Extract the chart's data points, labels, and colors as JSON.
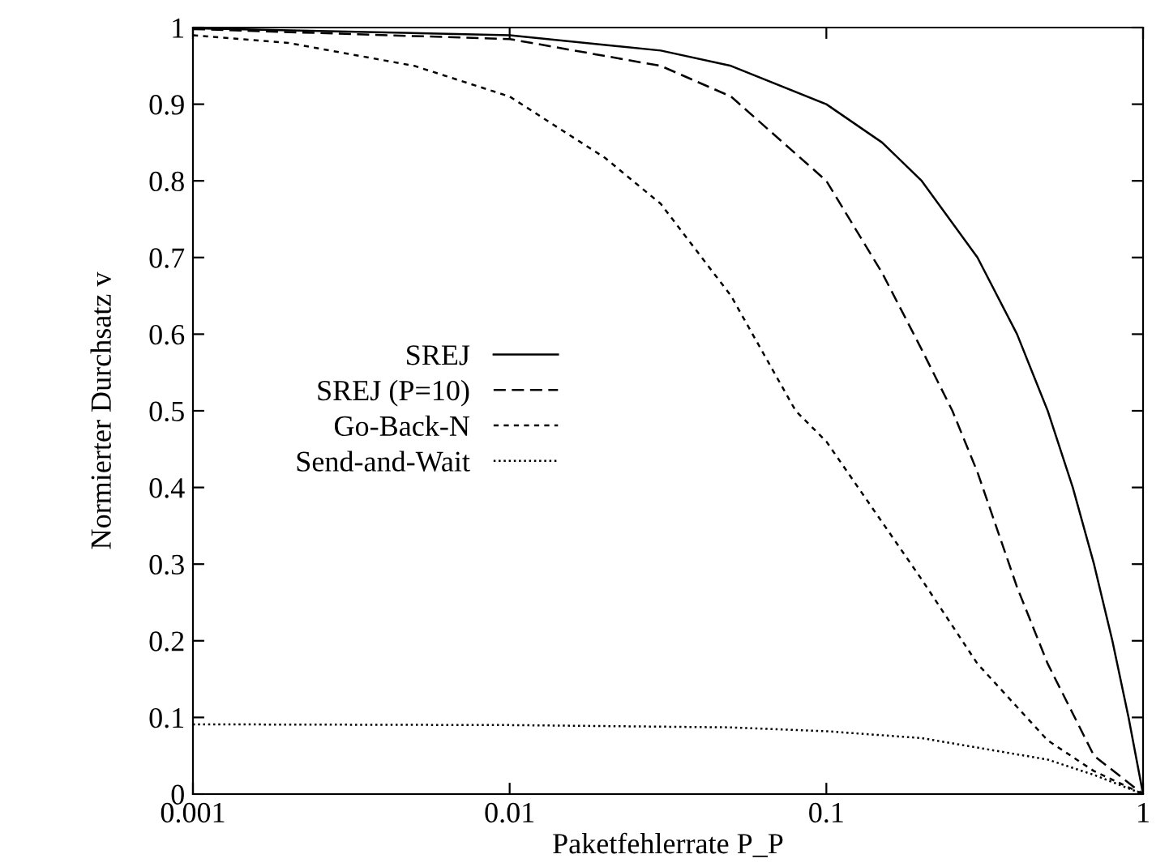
{
  "chart_data": {
    "type": "line",
    "xlabel": "Paketfehlerrate P_P",
    "ylabel": "Normierter Durchsatz v",
    "log": "x",
    "xlim": [
      0.001,
      1
    ],
    "xticks": [
      0.001,
      0.01,
      0.1,
      1
    ],
    "ylim": [
      0,
      1
    ],
    "yticks": [
      0,
      0.1,
      0.2,
      0.3,
      0.4,
      0.5,
      0.6,
      0.7,
      0.8,
      0.9,
      1
    ],
    "legend": "center left",
    "grid": false,
    "marker": "none",
    "series": [
      {
        "name": "SREJ",
        "color": "#000000",
        "line_style": "solid",
        "x": [
          0.001,
          0.01,
          0.03,
          0.05,
          0.1,
          0.15,
          0.2,
          0.3,
          0.4,
          0.5,
          0.6,
          0.7,
          0.8,
          0.9,
          1
        ],
        "values": [
          0.999,
          0.99,
          0.97,
          0.95,
          0.9,
          0.85,
          0.8,
          0.7,
          0.6,
          0.5,
          0.4,
          0.3,
          0.2,
          0.1,
          0
        ]
      },
      {
        "name": "SREJ (P=10)",
        "color": "#000000",
        "line_style": "dashed",
        "x": [
          0.001,
          0.01,
          0.03,
          0.05,
          0.1,
          0.15,
          0.2,
          0.25,
          0.3,
          0.4,
          0.5,
          0.7,
          1
        ],
        "values": [
          0.998,
          0.985,
          0.95,
          0.91,
          0.8,
          0.68,
          0.58,
          0.5,
          0.42,
          0.27,
          0.17,
          0.05,
          0
        ]
      },
      {
        "name": "Go-Back-N",
        "color": "#000000",
        "line_style": "short",
        "x": [
          0.001,
          0.002,
          0.005,
          0.01,
          0.02,
          0.03,
          0.05,
          0.08,
          0.1,
          0.2,
          0.3,
          0.5,
          0.7,
          1
        ],
        "values": [
          0.99,
          0.98,
          0.95,
          0.91,
          0.83,
          0.77,
          0.65,
          0.5,
          0.46,
          0.28,
          0.17,
          0.07,
          0.03,
          0
        ]
      },
      {
        "name": "Send-and-Wait",
        "color": "#000000",
        "line_style": "dotted",
        "x": [
          0.001,
          0.01,
          0.05,
          0.1,
          0.2,
          0.5,
          0.7,
          1
        ],
        "values": [
          0.091,
          0.09,
          0.087,
          0.082,
          0.073,
          0.045,
          0.025,
          0
        ]
      }
    ]
  }
}
